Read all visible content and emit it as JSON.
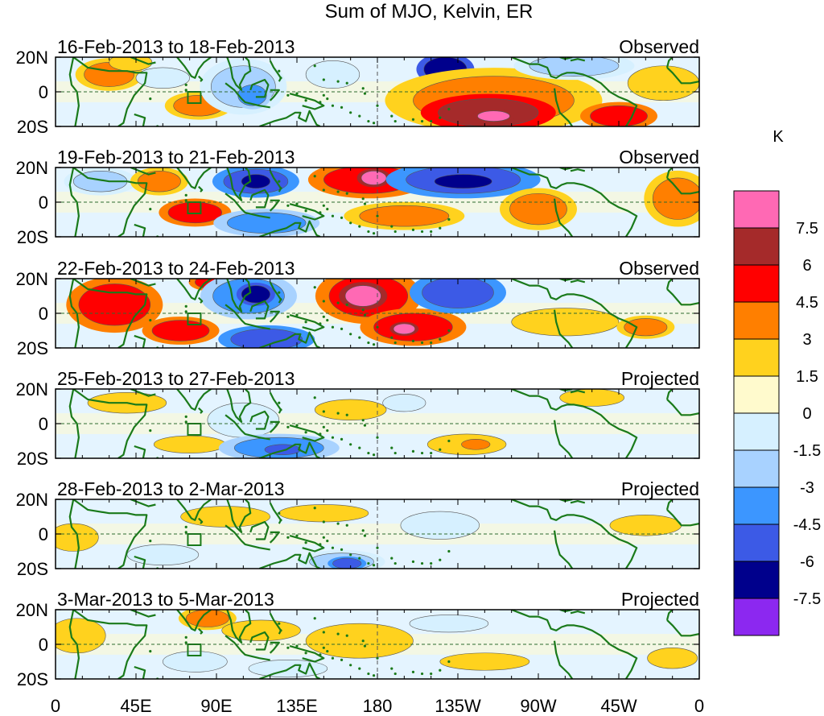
{
  "chart_data": {
    "type": "heatmap",
    "title": "Sum of MJO, Kelvin, ER",
    "units": "K",
    "x_ticks": [
      "0",
      "45E",
      "90E",
      "135E",
      "180",
      "135W",
      "90W",
      "45W",
      "0"
    ],
    "y_ticks": [
      "20N",
      "0",
      "20S"
    ],
    "lon_range": [
      0,
      360
    ],
    "lat_range": [
      -20,
      20
    ],
    "colorbar": {
      "levels": [
        "7.5",
        "6",
        "4.5",
        "3",
        "1.5",
        "0",
        "-1.5",
        "-3",
        "-4.5",
        "-6",
        "-7.5"
      ],
      "colors": [
        "#ff69b4",
        "#a52a2a",
        "#ff0000",
        "#ff7f00",
        "#ffd21e",
        "#fffacd",
        "#d6f0ff",
        "#a8d2ff",
        "#3c96ff",
        "#3c5ae6",
        "#00008c",
        "#8c28f0"
      ]
    },
    "panels": [
      {
        "period": "16-Feb-2013 to 18-Feb-2013",
        "status": "Observed",
        "blobs": [
          {
            "lon": 30,
            "lat": 10,
            "rx": 14,
            "ry": 7,
            "level": 3
          },
          {
            "lon": 42,
            "lat": 17,
            "rx": 12,
            "ry": 5,
            "level": 1.5
          },
          {
            "lon": 80,
            "lat": -8,
            "rx": 14,
            "ry": 6,
            "level": 3
          },
          {
            "lon": 60,
            "lat": 8,
            "rx": 15,
            "ry": 6,
            "level": -1.5
          },
          {
            "lon": 105,
            "lat": 3,
            "rx": 18,
            "ry": 12,
            "level": -3
          },
          {
            "lon": 110,
            "lat": -2,
            "rx": 8,
            "ry": 6,
            "level": -4.5
          },
          {
            "lon": 155,
            "lat": 10,
            "rx": 15,
            "ry": 8,
            "level": -1.5
          },
          {
            "lon": 218,
            "lat": 13,
            "rx": 12,
            "ry": 7,
            "level": -7.5
          },
          {
            "lon": 245,
            "lat": -5,
            "rx": 45,
            "ry": 14,
            "level": 3
          },
          {
            "lon": 242,
            "lat": -12,
            "rx": 28,
            "ry": 8,
            "level": 6
          },
          {
            "lon": 245,
            "lat": -14,
            "rx": 9,
            "ry": 3,
            "level": 7.5
          },
          {
            "lon": 315,
            "lat": -14,
            "rx": 16,
            "ry": 6,
            "level": 4.5
          },
          {
            "lon": 290,
            "lat": 15,
            "rx": 25,
            "ry": 6,
            "level": -3
          },
          {
            "lon": 340,
            "lat": 5,
            "rx": 20,
            "ry": 10,
            "level": 1.5
          }
        ]
      },
      {
        "period": "19-Feb-2013 to 21-Feb-2013",
        "status": "Observed",
        "blobs": [
          {
            "lon": 25,
            "lat": 12,
            "rx": 15,
            "ry": 6,
            "level": -3
          },
          {
            "lon": 58,
            "lat": 12,
            "rx": 12,
            "ry": 6,
            "level": 3
          },
          {
            "lon": 78,
            "lat": -6,
            "rx": 15,
            "ry": 6,
            "level": 4.5
          },
          {
            "lon": 112,
            "lat": 12,
            "rx": 18,
            "ry": 7,
            "level": -6
          },
          {
            "lon": 112,
            "lat": 12,
            "rx": 8,
            "ry": 4,
            "level": -7.5
          },
          {
            "lon": 118,
            "lat": -12,
            "rx": 22,
            "ry": 6,
            "level": -4.5
          },
          {
            "lon": 175,
            "lat": 13,
            "rx": 25,
            "ry": 8,
            "level": 4.5
          },
          {
            "lon": 178,
            "lat": 14,
            "rx": 7,
            "ry": 4,
            "level": 7.5
          },
          {
            "lon": 228,
            "lat": 13,
            "rx": 32,
            "ry": 8,
            "level": -6
          },
          {
            "lon": 228,
            "lat": 12,
            "rx": 16,
            "ry": 4,
            "level": -7.5
          },
          {
            "lon": 195,
            "lat": -8,
            "rx": 25,
            "ry": 6,
            "level": 3
          },
          {
            "lon": 270,
            "lat": -4,
            "rx": 16,
            "ry": 9,
            "level": 3
          },
          {
            "lon": 348,
            "lat": 2,
            "rx": 14,
            "ry": 12,
            "level": 3
          }
        ]
      },
      {
        "period": "22-Feb-2013 to 24-Feb-2013",
        "status": "Observed",
        "blobs": [
          {
            "lon": 33,
            "lat": 5,
            "rx": 20,
            "ry": 12,
            "level": 4.5
          },
          {
            "lon": 88,
            "lat": 18,
            "rx": 10,
            "ry": 4,
            "level": 4.5
          },
          {
            "lon": 70,
            "lat": -10,
            "rx": 16,
            "ry": 6,
            "level": 4.5
          },
          {
            "lon": 108,
            "lat": 10,
            "rx": 20,
            "ry": 10,
            "level": -4.5
          },
          {
            "lon": 112,
            "lat": 11,
            "rx": 8,
            "ry": 5,
            "level": -7.5
          },
          {
            "lon": 118,
            "lat": -15,
            "rx": 20,
            "ry": 6,
            "level": -6
          },
          {
            "lon": 175,
            "lat": 10,
            "rx": 22,
            "ry": 12,
            "level": 4.5
          },
          {
            "lon": 172,
            "lat": 10,
            "rx": 10,
            "ry": 6,
            "level": 7.5
          },
          {
            "lon": 200,
            "lat": -8,
            "rx": 22,
            "ry": 8,
            "level": 4.5
          },
          {
            "lon": 195,
            "lat": -9,
            "rx": 6,
            "ry": 3,
            "level": 7.5
          },
          {
            "lon": 225,
            "lat": 12,
            "rx": 20,
            "ry": 9,
            "level": -6
          },
          {
            "lon": 285,
            "lat": -5,
            "rx": 30,
            "ry": 8,
            "level": 1.5
          },
          {
            "lon": 330,
            "lat": -8,
            "rx": 12,
            "ry": 5,
            "level": 3
          }
        ]
      },
      {
        "period": "25-Feb-2013 to 27-Feb-2013",
        "status": "Projected",
        "blobs": [
          {
            "lon": 40,
            "lat": 12,
            "rx": 22,
            "ry": 6,
            "level": 1.5
          },
          {
            "lon": 75,
            "lat": -12,
            "rx": 20,
            "ry": 5,
            "level": 1.5
          },
          {
            "lon": 105,
            "lat": 2,
            "rx": 20,
            "ry": 10,
            "level": -1.5
          },
          {
            "lon": 125,
            "lat": -14,
            "rx": 25,
            "ry": 6,
            "level": -4.5
          },
          {
            "lon": 127,
            "lat": -15,
            "rx": 10,
            "ry": 3,
            "level": -6
          },
          {
            "lon": 165,
            "lat": 8,
            "rx": 20,
            "ry": 6,
            "level": 1.5
          },
          {
            "lon": 195,
            "lat": 12,
            "rx": 12,
            "ry": 5,
            "level": -1.5
          },
          {
            "lon": 230,
            "lat": -12,
            "rx": 22,
            "ry": 6,
            "level": 1.5
          },
          {
            "lon": 235,
            "lat": -12,
            "rx": 8,
            "ry": 3,
            "level": 3
          },
          {
            "lon": 300,
            "lat": 15,
            "rx": 18,
            "ry": 5,
            "level": 1.5
          }
        ]
      },
      {
        "period": "28-Feb-2013 to 2-Mar-2013",
        "status": "Projected",
        "blobs": [
          {
            "lon": 10,
            "lat": -2,
            "rx": 14,
            "ry": 8,
            "level": 1.5
          },
          {
            "lon": 60,
            "lat": -12,
            "rx": 20,
            "ry": 6,
            "level": -1.5
          },
          {
            "lon": 95,
            "lat": 10,
            "rx": 25,
            "ry": 6,
            "level": 1.5
          },
          {
            "lon": 150,
            "lat": 12,
            "rx": 25,
            "ry": 5,
            "level": 1.5
          },
          {
            "lon": 160,
            "lat": -16,
            "rx": 18,
            "ry": 5,
            "level": -3
          },
          {
            "lon": 163,
            "lat": -17,
            "rx": 8,
            "ry": 3,
            "level": -6
          },
          {
            "lon": 215,
            "lat": 5,
            "rx": 22,
            "ry": 8,
            "level": -1.5
          },
          {
            "lon": 330,
            "lat": 5,
            "rx": 20,
            "ry": 6,
            "level": 1.5
          }
        ]
      },
      {
        "period": "3-Mar-2013 to 5-Mar-2013",
        "status": "Projected",
        "blobs": [
          {
            "lon": 12,
            "lat": 5,
            "rx": 16,
            "ry": 10,
            "level": 1.5
          },
          {
            "lon": 85,
            "lat": 15,
            "rx": 12,
            "ry": 5,
            "level": 3
          },
          {
            "lon": 78,
            "lat": -10,
            "rx": 18,
            "ry": 6,
            "level": -1.5
          },
          {
            "lon": 115,
            "lat": 8,
            "rx": 22,
            "ry": 6,
            "level": 1.5
          },
          {
            "lon": 130,
            "lat": -14,
            "rx": 22,
            "ry": 5,
            "level": -1.5
          },
          {
            "lon": 170,
            "lat": 2,
            "rx": 30,
            "ry": 10,
            "level": 1.5
          },
          {
            "lon": 220,
            "lat": 12,
            "rx": 22,
            "ry": 5,
            "level": -1.5
          },
          {
            "lon": 240,
            "lat": -10,
            "rx": 25,
            "ry": 5,
            "level": 1.5
          },
          {
            "lon": 345,
            "lat": -8,
            "rx": 14,
            "ry": 6,
            "level": 1.5
          }
        ]
      }
    ]
  }
}
